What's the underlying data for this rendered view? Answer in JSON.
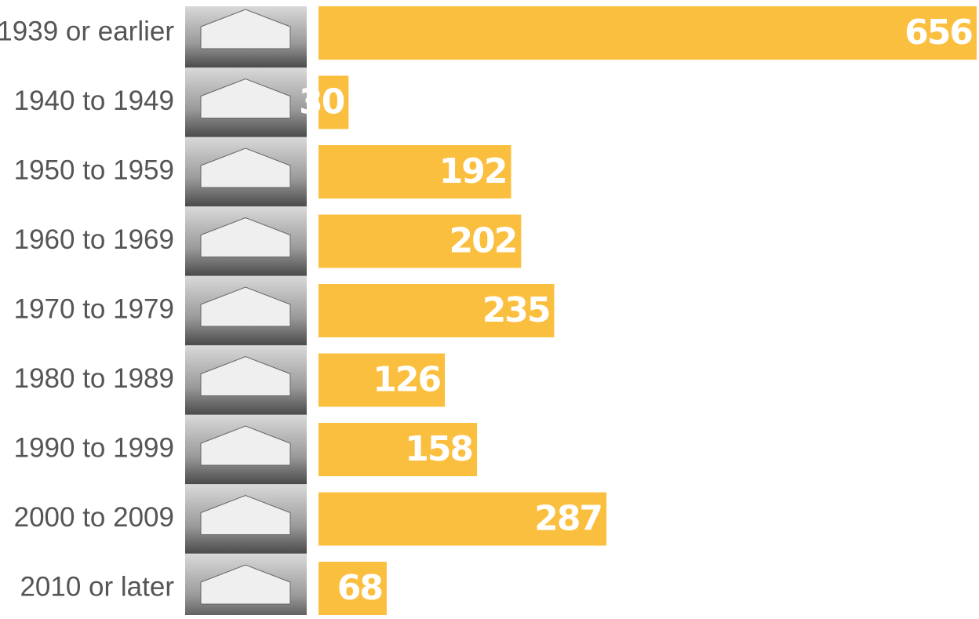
{
  "chart_data": {
    "type": "bar",
    "orientation": "horizontal",
    "categories": [
      "1939 or earlier",
      "1940 to 1949",
      "1950 to 1959",
      "1960 to 1969",
      "1970 to 1979",
      "1980 to 1989",
      "1990 to 1999",
      "2000 to 2009",
      "2010 or later"
    ],
    "values": [
      656,
      30,
      192,
      202,
      235,
      126,
      158,
      287,
      68
    ],
    "color": "#fbbf40"
  }
}
